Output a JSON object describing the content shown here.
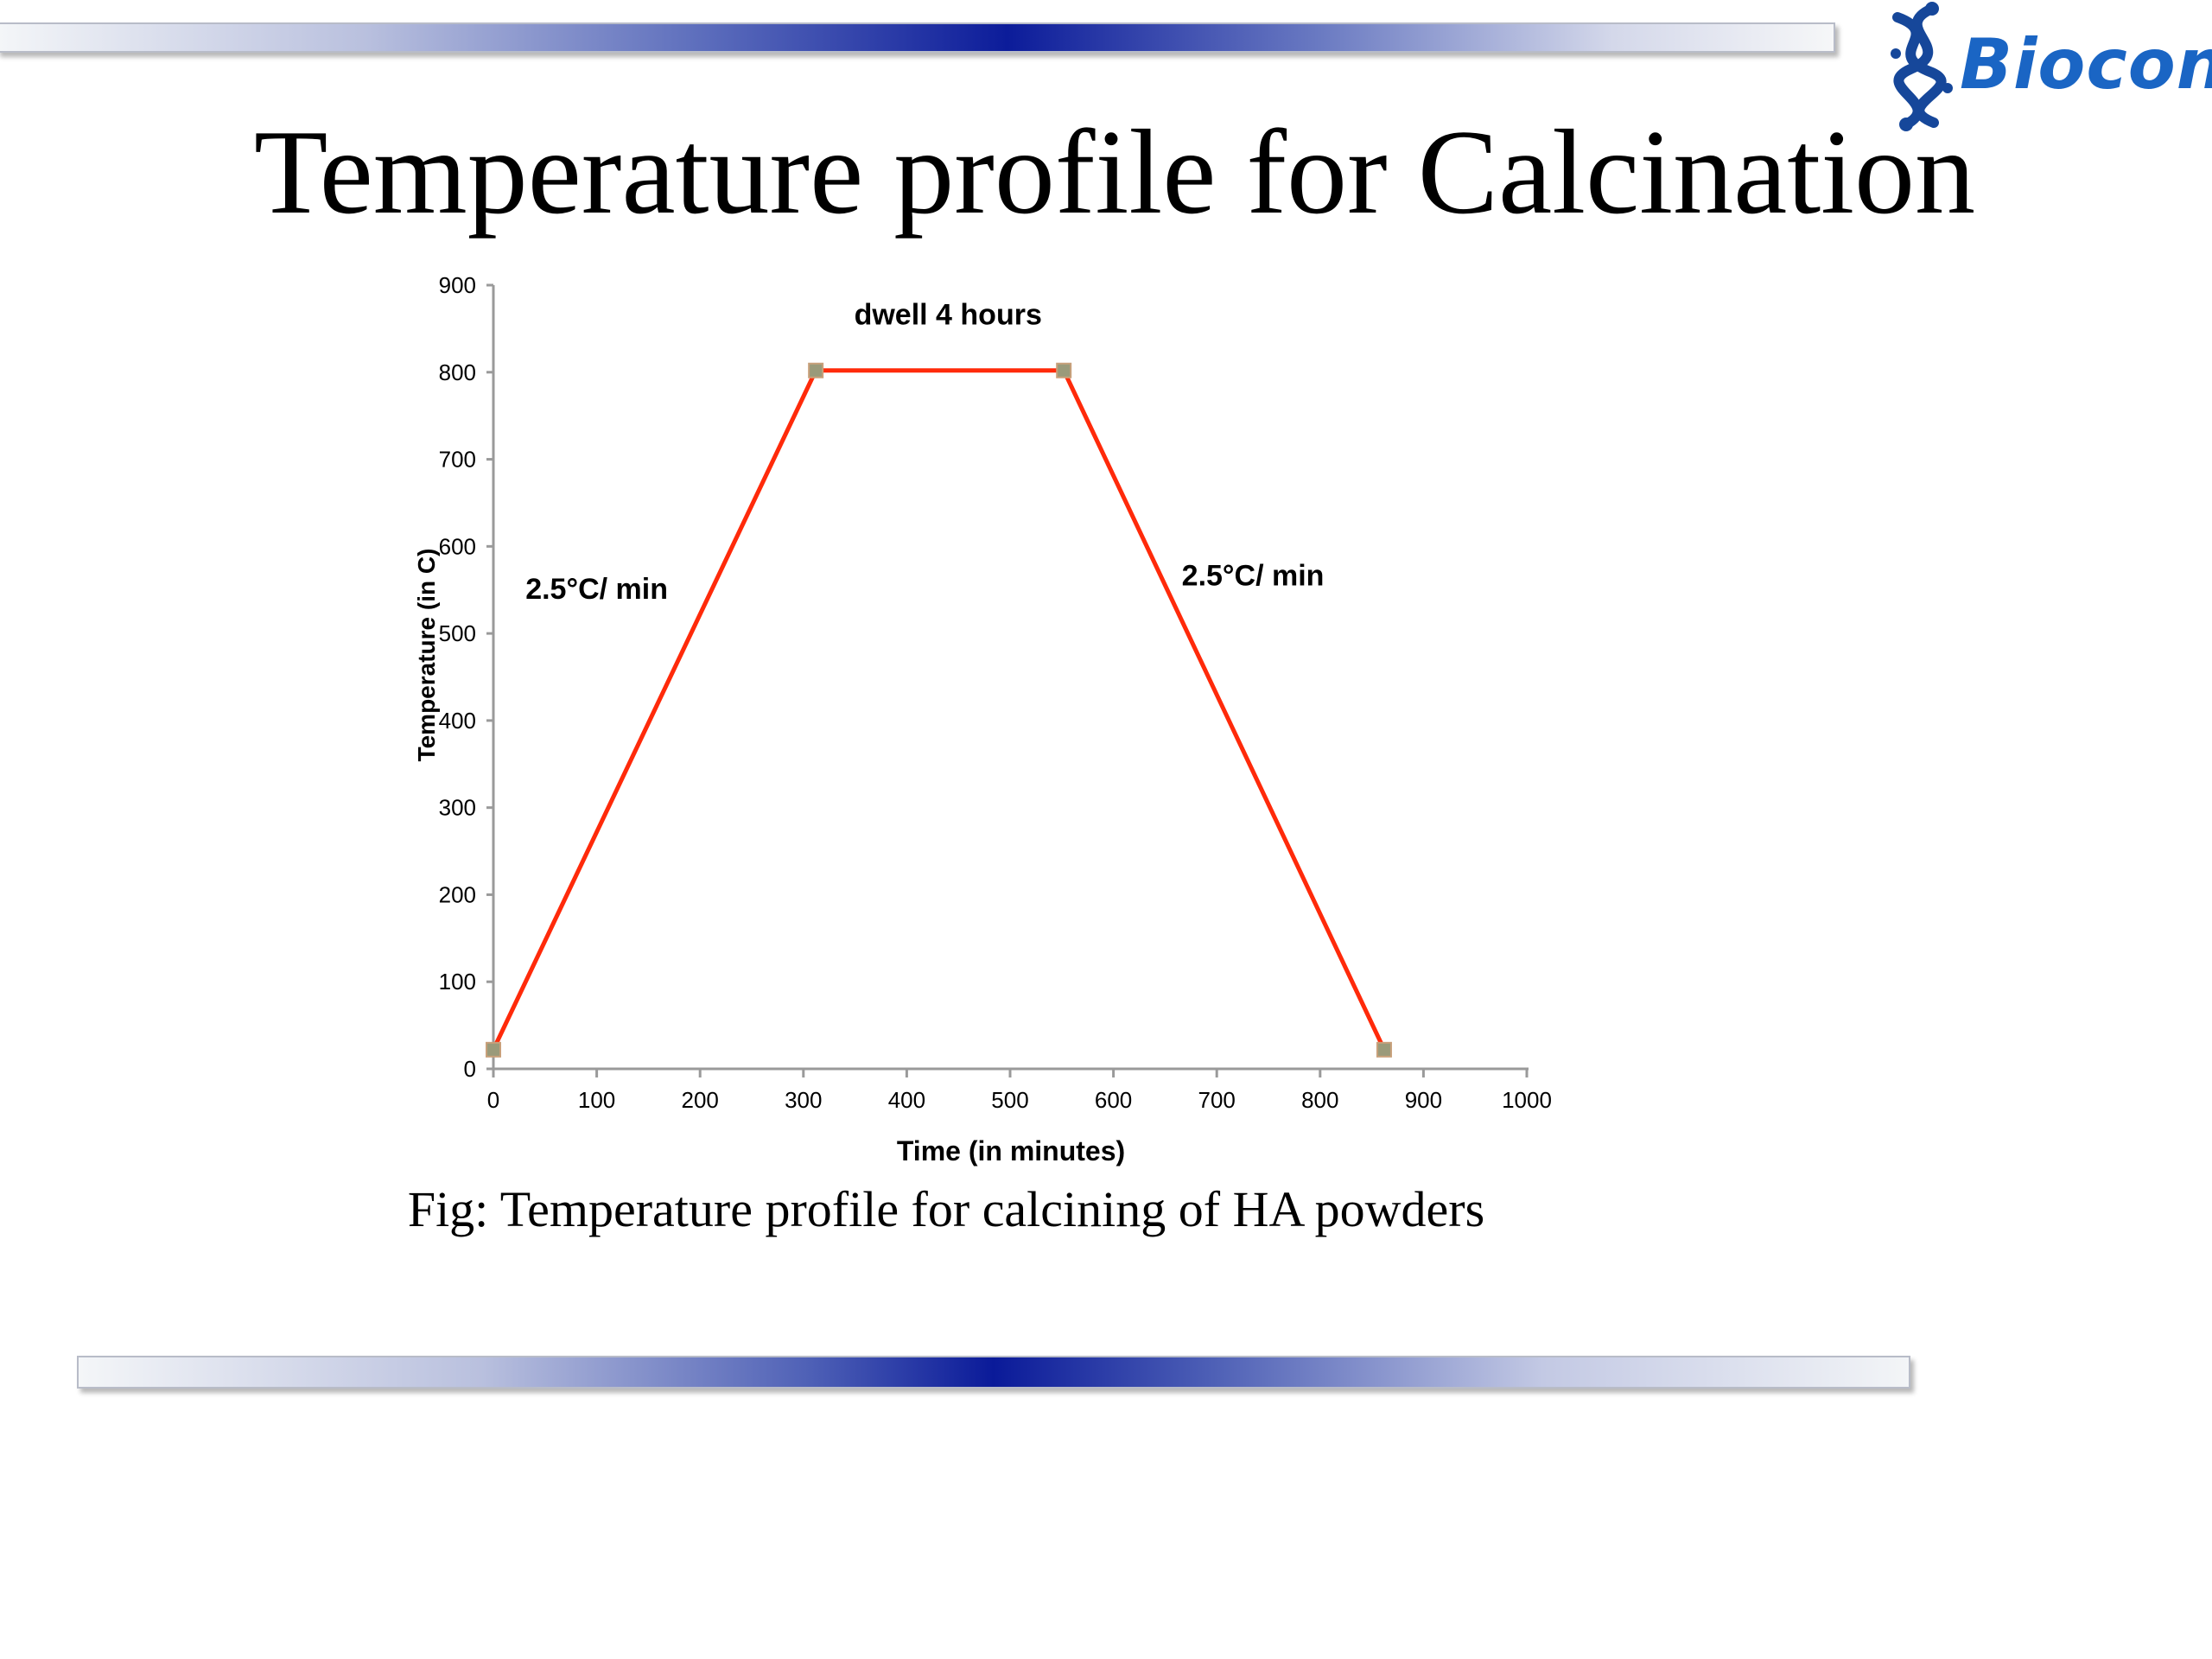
{
  "slide": {
    "title": "Temperature profile for Calcination",
    "caption": "Fig: Temperature profile for calcining of HA powders"
  },
  "logo": {
    "text": "Biocon",
    "color": "#1a65c4"
  },
  "colors": {
    "series_line": "#ff2a0a",
    "marker": "#9a9a7a",
    "bar_dark": "#0c1c9a"
  },
  "chart_data": {
    "type": "line",
    "title": "",
    "xlabel": "Time (in minutes)",
    "ylabel": "Temperature (in C)",
    "xlim": [
      0,
      1000
    ],
    "ylim": [
      0,
      900
    ],
    "xticks": [
      0,
      100,
      200,
      300,
      400,
      500,
      600,
      700,
      800,
      900,
      1000
    ],
    "yticks": [
      0,
      100,
      200,
      300,
      400,
      500,
      600,
      700,
      800,
      900
    ],
    "grid": false,
    "legend": "none",
    "series": [
      {
        "x": [
          0,
          312,
          552,
          862
        ],
        "y": [
          22,
          802,
          802,
          22
        ]
      }
    ],
    "annotations": [
      {
        "text": "2.5°C/ min",
        "x": 100,
        "y": 540
      },
      {
        "text": "dwell 4 hours",
        "x": 440,
        "y": 855
      },
      {
        "text": "2.5°C/ min",
        "x": 735,
        "y": 555
      }
    ]
  }
}
